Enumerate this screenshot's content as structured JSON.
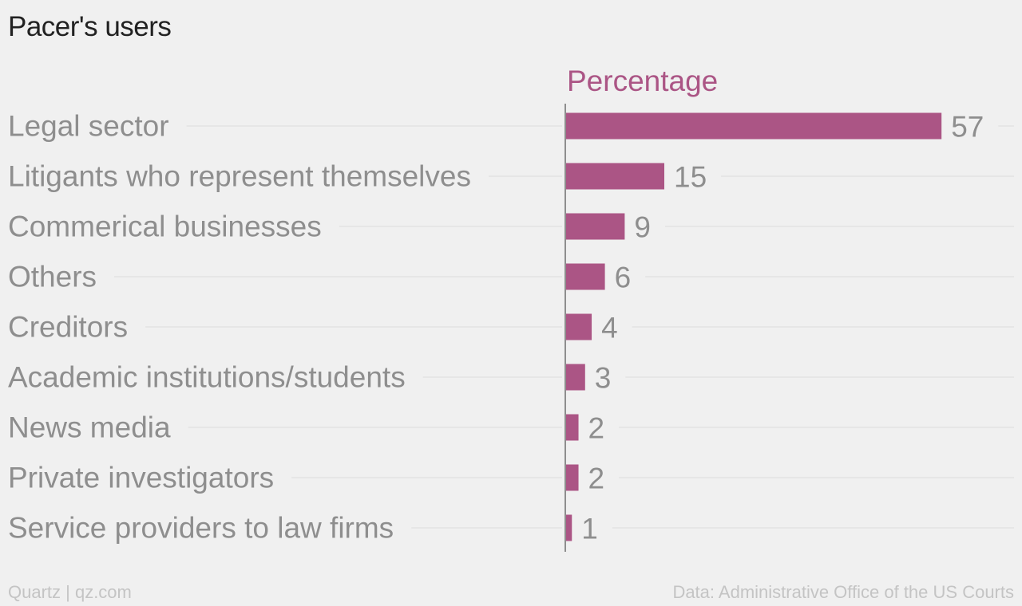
{
  "title": "Pacer's users",
  "footer": {
    "source_left": "Quartz | qz.com",
    "source_right": "Data: Administrative Office of the US Courts"
  },
  "colors": {
    "bar": "#ab5585",
    "axis": "#8e8e8e",
    "gridline": "#e2e2e2",
    "label": "#8e8e8e",
    "background": "#f0f0f0"
  },
  "chart_data": {
    "type": "bar",
    "orientation": "horizontal",
    "categories": [
      "Legal sector",
      "Litigants who represent themselves",
      "Commerical businesses",
      "Others",
      "Creditors",
      "Academic institutions/students",
      "News media",
      "Private investigators",
      "Service providers to law firms"
    ],
    "series": [
      {
        "name": "Percentage",
        "values": [
          57,
          15,
          9,
          6,
          4,
          3,
          2,
          2,
          1
        ]
      }
    ],
    "xlim": [
      0,
      60
    ],
    "grid": false,
    "legend": "top"
  }
}
